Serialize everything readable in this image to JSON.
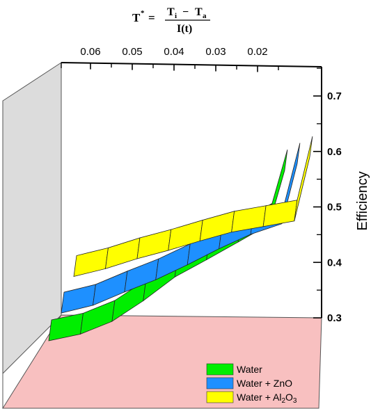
{
  "formula": {
    "lhs": "T",
    "lhs_sup": "*",
    "eq": "=",
    "numerator_a": "T",
    "numerator_a_sub": "i",
    "numerator_minus": "−",
    "numerator_b": "T",
    "numerator_b_sub": "a",
    "denominator": "I(t)"
  },
  "chart_data": {
    "type": "line",
    "style": "3d-ribbon",
    "x_ticks": [
      "0.06",
      "0.05",
      "0.04",
      "0.03",
      "0.02"
    ],
    "y_ticks": [
      "0.3",
      "0.4",
      "0.5",
      "0.6",
      "0.7"
    ],
    "ylabel": "Efficiency",
    "xlim": [
      0.065,
      0.015
    ],
    "ylim": [
      0.3,
      0.7
    ],
    "legend_position": "bottom-right",
    "series": [
      {
        "name": "Water",
        "color": "#00ee00",
        "x": [
          0.065,
          0.0586,
          0.0522,
          0.0459,
          0.0395,
          0.0331,
          0.0267,
          0.0204,
          0.0173
        ],
        "y": [
          0.29,
          0.302,
          0.325,
          0.362,
          0.405,
          0.436,
          0.468,
          0.5,
          0.597
        ]
      },
      {
        "name": "Water + ZnO",
        "color": "#1e90ff",
        "x": [
          0.065,
          0.0586,
          0.0522,
          0.0459,
          0.0395,
          0.0331,
          0.0267,
          0.0204,
          0.0173
        ],
        "y": [
          0.35,
          0.364,
          0.388,
          0.41,
          0.437,
          0.466,
          0.492,
          0.511,
          0.619
        ]
      },
      {
        "name": "Water + Al2O3",
        "color": "#ffff00",
        "x": [
          0.065,
          0.0586,
          0.0522,
          0.0459,
          0.0395,
          0.0331,
          0.0267,
          0.0204,
          0.0173
        ],
        "y": [
          0.426,
          0.44,
          0.458,
          0.473,
          0.49,
          0.506,
          0.516,
          0.526,
          0.641
        ]
      }
    ]
  },
  "legend": {
    "water": "Water",
    "zno": "Water + ZnO",
    "al_prefix": "Water + Al",
    "al_sub1": "2",
    "al_mid": "O",
    "al_sub2": "3"
  }
}
